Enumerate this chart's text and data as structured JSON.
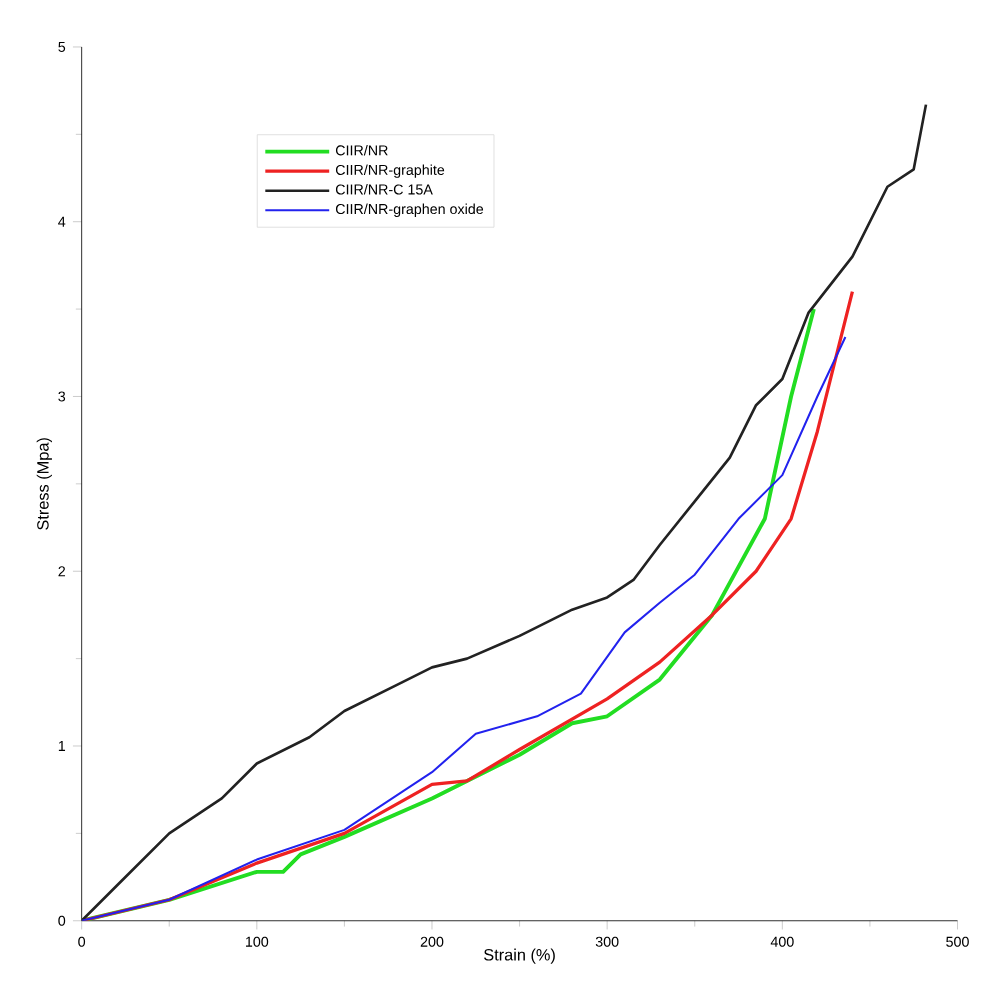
{
  "chart_data": {
    "type": "line",
    "xlabel": "Strain (%)",
    "ylabel": "Stress (Mpa)",
    "xlim": [
      0,
      500
    ],
    "ylim": [
      0,
      5
    ],
    "xticks": [
      0,
      100,
      200,
      300,
      400,
      500
    ],
    "yticks": [
      0,
      1,
      2,
      3,
      4,
      5
    ],
    "legend": "top left",
    "grid": false,
    "marker": "none",
    "line_style": "solid",
    "series": [
      {
        "name": "CIIR/NR",
        "color": "#22dd22",
        "x": [
          0,
          50,
          100,
          115,
          125,
          150,
          200,
          250,
          280,
          300,
          330,
          360,
          390,
          405,
          418
        ],
        "values": [
          0,
          0.12,
          0.28,
          0.28,
          0.38,
          0.48,
          0.7,
          0.95,
          1.13,
          1.17,
          1.38,
          1.75,
          2.3,
          3.0,
          3.5
        ]
      },
      {
        "name": "CIIR/NR-graphite",
        "color": "#ee2222",
        "x": [
          0,
          50,
          100,
          150,
          200,
          220,
          250,
          300,
          330,
          360,
          385,
          405,
          420,
          440
        ],
        "values": [
          0,
          0.12,
          0.33,
          0.5,
          0.78,
          0.8,
          0.98,
          1.27,
          1.48,
          1.75,
          2.0,
          2.3,
          2.8,
          3.6
        ]
      },
      {
        "name": "CIIR/NR-C 15A",
        "color": "#222222",
        "x": [
          0,
          20,
          50,
          80,
          100,
          130,
          150,
          180,
          200,
          220,
          250,
          280,
          300,
          315,
          330,
          350,
          370,
          385,
          400,
          415,
          440,
          460,
          475,
          482
        ],
        "values": [
          0,
          0.2,
          0.5,
          0.7,
          0.9,
          1.05,
          1.2,
          1.35,
          1.45,
          1.5,
          1.63,
          1.78,
          1.85,
          1.95,
          2.15,
          2.4,
          2.65,
          2.95,
          3.1,
          3.48,
          3.8,
          4.2,
          4.3,
          4.67
        ]
      },
      {
        "name": "CIIR/NR-graphen oxide",
        "color": "#2222ee",
        "x": [
          0,
          50,
          100,
          150,
          200,
          225,
          260,
          285,
          310,
          330,
          350,
          375,
          400,
          420,
          436
        ],
        "values": [
          0,
          0.12,
          0.35,
          0.52,
          0.85,
          1.07,
          1.17,
          1.3,
          1.65,
          1.82,
          1.98,
          2.3,
          2.55,
          3.0,
          3.34
        ]
      }
    ]
  }
}
